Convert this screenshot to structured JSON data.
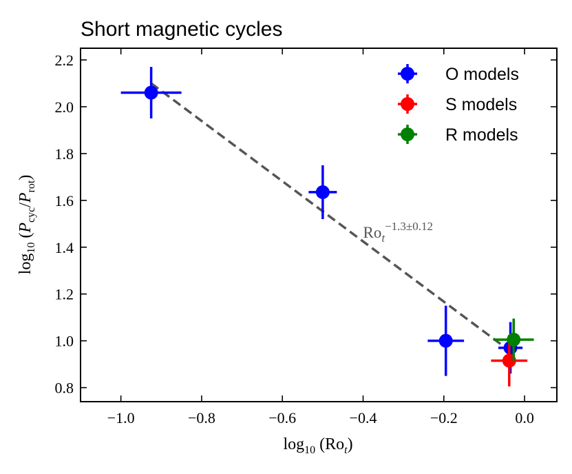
{
  "chart_data": {
    "type": "scatter",
    "title": "Short magnetic cycles",
    "xlabel": "log10 (Ro_t)",
    "ylabel": "log10 (P_cyc / P_rot)",
    "xlim": [
      -1.1,
      0.08
    ],
    "ylim": [
      0.74,
      2.25
    ],
    "xticks": [
      -1.0,
      -0.8,
      -0.6,
      -0.4,
      -0.2,
      0.0
    ],
    "xtick_labels": [
      "−1.0",
      "−0.8",
      "−0.6",
      "−0.4",
      "−0.2",
      "0.0"
    ],
    "yticks": [
      0.8,
      1.0,
      1.2,
      1.4,
      1.6,
      1.8,
      2.0,
      2.2
    ],
    "ytick_labels": [
      "0.8",
      "1.0",
      "1.2",
      "1.4",
      "1.6",
      "1.8",
      "2.0",
      "2.2"
    ],
    "legend_position": "top-right",
    "series": [
      {
        "name": "O models",
        "color": "#0000ff",
        "points": [
          {
            "x": -0.925,
            "y": 2.06,
            "xerr": 0.075,
            "yerr": 0.11
          },
          {
            "x": -0.5,
            "y": 1.635,
            "xerr": 0.035,
            "yerr": 0.115
          },
          {
            "x": -0.195,
            "y": 1.0,
            "xerr": 0.045,
            "yerr": 0.15
          },
          {
            "x": -0.035,
            "y": 0.97,
            "xerr": 0.03,
            "yerr": 0.11
          }
        ]
      },
      {
        "name": "S models",
        "color": "#ff0000",
        "points": [
          {
            "x": -0.038,
            "y": 0.915,
            "xerr": 0.045,
            "yerr": 0.11
          }
        ]
      },
      {
        "name": "R models",
        "color": "#008000",
        "points": [
          {
            "x": -0.027,
            "y": 1.005,
            "xerr": 0.05,
            "yerr": 0.09
          }
        ]
      }
    ],
    "fit": {
      "x": [
        -0.925,
        -0.035
      ],
      "y": [
        2.1,
        0.955
      ],
      "color": "#555555",
      "style": "dashed",
      "label_base": "Ro",
      "label_sub": "t",
      "label_exponent": "−1.3±0.12",
      "label_at": {
        "x": -0.4,
        "y": 1.44
      }
    }
  }
}
